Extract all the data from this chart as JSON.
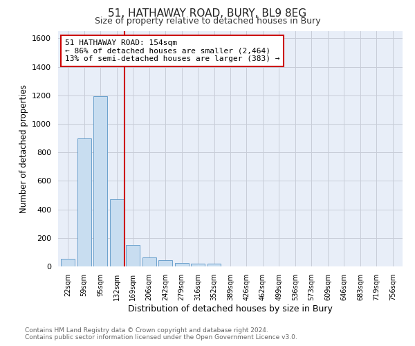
{
  "title1": "51, HATHAWAY ROAD, BURY, BL9 8EG",
  "title2": "Size of property relative to detached houses in Bury",
  "xlabel": "Distribution of detached houses by size in Bury",
  "ylabel": "Number of detached properties",
  "categories": [
    "22sqm",
    "59sqm",
    "95sqm",
    "132sqm",
    "169sqm",
    "206sqm",
    "242sqm",
    "279sqm",
    "316sqm",
    "352sqm",
    "389sqm",
    "426sqm",
    "462sqm",
    "499sqm",
    "536sqm",
    "573sqm",
    "609sqm",
    "646sqm",
    "683sqm",
    "719sqm",
    "756sqm"
  ],
  "values": [
    55,
    900,
    1195,
    470,
    150,
    62,
    45,
    25,
    20,
    20,
    0,
    0,
    0,
    0,
    0,
    0,
    0,
    0,
    0,
    0,
    0
  ],
  "bar_color": "#c8ddf0",
  "bar_edge_color": "#6aa0cc",
  "ylim": [
    0,
    1650
  ],
  "yticks": [
    0,
    200,
    400,
    600,
    800,
    1000,
    1200,
    1400,
    1600
  ],
  "vline_color": "#cc0000",
  "annotation_line1": "51 HATHAWAY ROAD: 154sqm",
  "annotation_line2": "← 86% of detached houses are smaller (2,464)",
  "annotation_line3": "13% of semi-detached houses are larger (383) →",
  "annotation_box_color": "#ffffff",
  "annotation_box_edge": "#cc0000",
  "footer1": "Contains HM Land Registry data © Crown copyright and database right 2024.",
  "footer2": "Contains public sector information licensed under the Open Government Licence v3.0.",
  "fig_bg_color": "#ffffff",
  "plot_bg_color": "#e8eef8",
  "grid_color": "#c8ccd8"
}
